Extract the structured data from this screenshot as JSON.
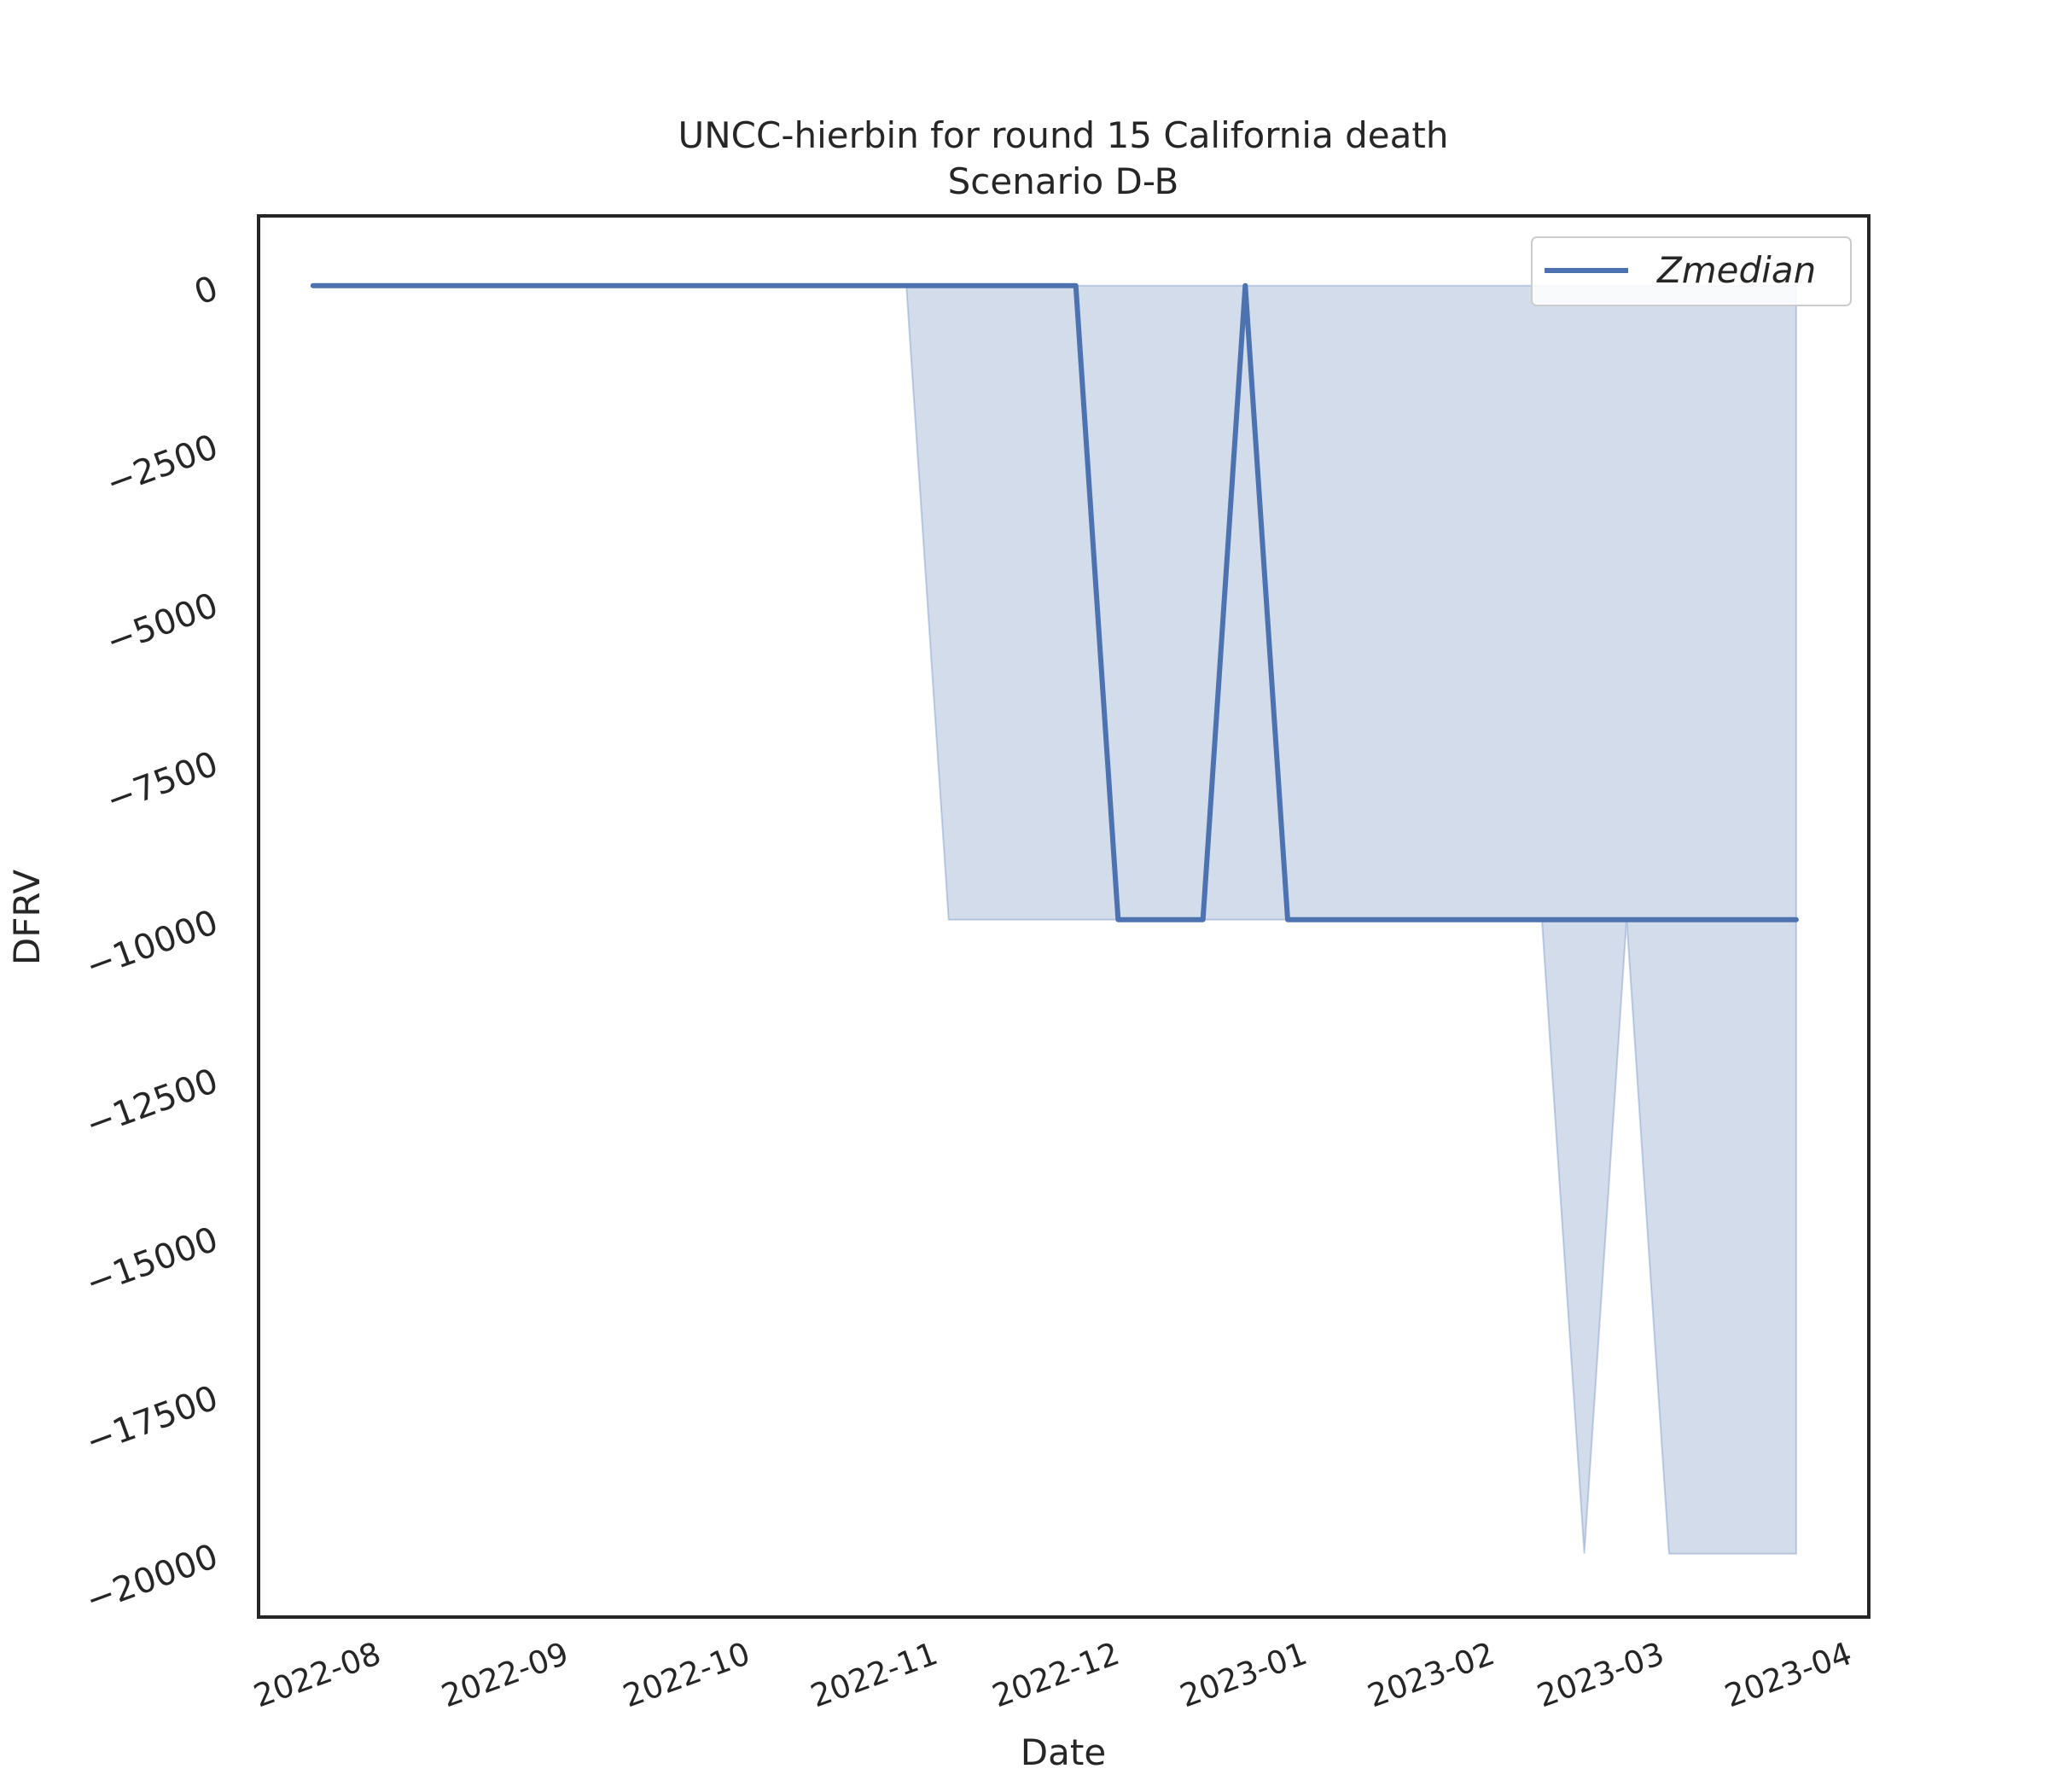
{
  "chart_data": {
    "type": "line",
    "title": "UNCC-hierbin for round 15 California death",
    "subtitle": "Scenario D-B",
    "xlabel": "Date",
    "ylabel": "DFRV",
    "x_ticks": [
      "2022-08",
      "2022-09",
      "2022-10",
      "2022-11",
      "2022-12",
      "2023-01",
      "2023-02",
      "2023-03",
      "2023-04"
    ],
    "y_ticks": [
      0,
      -2500,
      -5000,
      -7500,
      -10000,
      -12500,
      -15000,
      -17500,
      -20000
    ],
    "y_tick_labels": [
      "0",
      "−2500",
      "−5000",
      "−7500",
      "−10000",
      "−12500",
      "−15000",
      "−17500",
      "−20000"
    ],
    "xlim": [
      "2022-07-14",
      "2023-04-06"
    ],
    "ylim": [
      -21000,
      1100
    ],
    "grid": false,
    "legend_position": "top-right",
    "x": [
      "2022-07-23",
      "2022-07-30",
      "2022-08-06",
      "2022-08-13",
      "2022-08-20",
      "2022-08-27",
      "2022-09-03",
      "2022-09-10",
      "2022-09-17",
      "2022-09-24",
      "2022-10-01",
      "2022-10-08",
      "2022-10-15",
      "2022-10-22",
      "2022-10-29",
      "2022-11-05",
      "2022-11-12",
      "2022-11-19",
      "2022-11-26",
      "2022-12-03",
      "2022-12-10",
      "2022-12-17",
      "2022-12-24",
      "2022-12-31",
      "2023-01-07",
      "2023-01-14",
      "2023-01-21",
      "2023-01-28",
      "2023-02-04",
      "2023-02-11",
      "2023-02-18",
      "2023-02-25",
      "2023-03-04",
      "2023-03-11",
      "2023-03-18",
      "2023-03-25"
    ],
    "series": [
      {
        "name": "Zmedian",
        "color": "#4c72b0",
        "values": [
          0,
          0,
          0,
          0,
          0,
          0,
          0,
          0,
          0,
          0,
          0,
          0,
          0,
          0,
          0,
          0,
          0,
          0,
          0,
          -10000,
          -10000,
          -10000,
          0,
          -10000,
          -10000,
          -10000,
          -10000,
          -10000,
          -10000,
          -10000,
          -10000,
          -10000,
          -10000,
          -10000,
          -10000,
          -10000
        ]
      }
    ],
    "band": {
      "color": "#4c72b0",
      "upper": [
        0,
        0,
        0,
        0,
        0,
        0,
        0,
        0,
        0,
        0,
        0,
        0,
        0,
        0,
        0,
        0,
        0,
        0,
        0,
        0,
        0,
        0,
        0,
        0,
        0,
        0,
        0,
        0,
        0,
        0,
        0,
        0,
        0,
        0,
        0,
        0
      ],
      "lower": [
        0,
        0,
        0,
        0,
        0,
        0,
        0,
        0,
        0,
        0,
        0,
        0,
        0,
        0,
        0,
        -10000,
        -10000,
        -10000,
        -10000,
        -10000,
        -10000,
        -10000,
        -10000,
        -10000,
        -10000,
        -10000,
        -10000,
        -10000,
        -10000,
        -10000,
        -20000,
        -10000,
        -20000,
        -20000,
        -20000,
        -20000
      ]
    }
  }
}
